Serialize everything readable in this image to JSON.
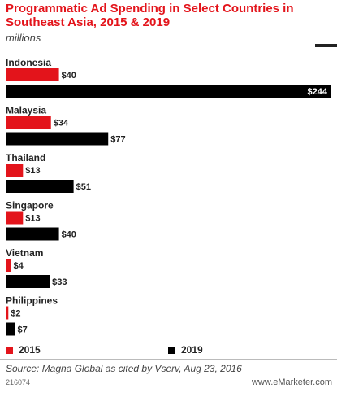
{
  "title": "Programmatic Ad Spending in Select Countries in Southeast Asia, 2015 & 2019",
  "subtitle": "millions",
  "source": "Source: Magna Global as cited by Vserv, Aug 23, 2016",
  "chart_id": "216074",
  "brand": "www.eMarketer.com",
  "colors": {
    "series_2015": "#e3141b",
    "series_2019": "#000000",
    "title": "#e3141b"
  },
  "legend": {
    "items": [
      "2015",
      "2019"
    ]
  },
  "chart_data": {
    "type": "bar",
    "orientation": "horizontal",
    "title": "Programmatic Ad Spending in Select Countries in Southeast Asia, 2015 & 2019",
    "subtitle": "millions",
    "categories": [
      "Indonesia",
      "Malaysia",
      "Thailand",
      "Singapore",
      "Vietnam",
      "Philippines"
    ],
    "series": [
      {
        "name": "2015",
        "values": [
          40,
          34,
          13,
          13,
          4,
          2
        ],
        "labels": [
          "$40",
          "$34",
          "$13",
          "$13",
          "$4",
          "$2"
        ]
      },
      {
        "name": "2019",
        "values": [
          244,
          77,
          51,
          40,
          33,
          7
        ],
        "labels": [
          "$244",
          "$77",
          "$51",
          "$40",
          "$33",
          "$7"
        ]
      }
    ],
    "xlim": [
      0,
      244
    ],
    "grid": false,
    "legend_placement": "bottom"
  }
}
